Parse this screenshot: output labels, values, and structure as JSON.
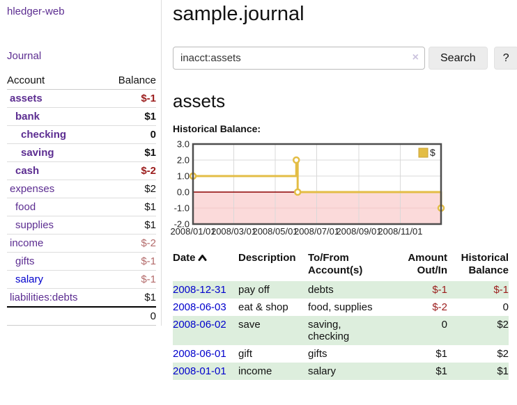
{
  "app": {
    "title": "hledger-web",
    "nav_journal": "Journal"
  },
  "sidebar": {
    "col_account": "Account",
    "col_balance": "Balance",
    "accounts": [
      {
        "name": "assets",
        "indent": 1,
        "bold": true,
        "link": "purple",
        "balance": "$-1",
        "balance_style": "neg-strong"
      },
      {
        "name": "bank",
        "indent": 2,
        "bold": true,
        "link": "purple",
        "balance": "$1",
        "balance_style": "normal"
      },
      {
        "name": "checking",
        "indent": 3,
        "bold": true,
        "link": "purple",
        "balance": "0",
        "balance_style": "normal"
      },
      {
        "name": "saving",
        "indent": 3,
        "bold": true,
        "link": "purple",
        "balance": "$1",
        "balance_style": "normal"
      },
      {
        "name": "cash",
        "indent": 2,
        "bold": true,
        "link": "purple",
        "balance": "$-2",
        "balance_style": "neg-strong"
      },
      {
        "name": "expenses",
        "indent": 1,
        "bold": false,
        "link": "purple",
        "balance": "$2",
        "balance_style": "normal"
      },
      {
        "name": "food",
        "indent": 2,
        "bold": false,
        "link": "purple",
        "balance": "$1",
        "balance_style": "normal"
      },
      {
        "name": "supplies",
        "indent": 2,
        "bold": false,
        "link": "purple",
        "balance": "$1",
        "balance_style": "normal"
      },
      {
        "name": "income",
        "indent": 1,
        "bold": false,
        "link": "purple",
        "balance": "$-2",
        "balance_style": "neg-soft"
      },
      {
        "name": "gifts",
        "indent": 2,
        "bold": false,
        "link": "purple",
        "balance": "$-1",
        "balance_style": "neg-soft"
      },
      {
        "name": "salary",
        "indent": 2,
        "bold": false,
        "link": "blue",
        "balance": "$-1",
        "balance_style": "neg-soft"
      },
      {
        "name": "liabilities:debts",
        "indent": 1,
        "bold": false,
        "link": "purple",
        "balance": "$1",
        "balance_style": "normal"
      }
    ],
    "total": "0"
  },
  "main": {
    "title": "sample.journal",
    "search": {
      "value": "inacct:assets",
      "clear_icon": "×",
      "button": "Search",
      "help": "?"
    },
    "heading": "assets",
    "chart_label": "Historical Balance:"
  },
  "chart_data": {
    "type": "line",
    "title": "Historical Balance",
    "legend": [
      {
        "label": "$",
        "color": "#e3bd45"
      }
    ],
    "legend_position": "top-right",
    "x_range_days": [
      0,
      365
    ],
    "x_ticks": [
      {
        "day": 0,
        "label": "2008/01/01"
      },
      {
        "day": 60,
        "label": "2008/03/01"
      },
      {
        "day": 121,
        "label": "2008/05/01"
      },
      {
        "day": 182,
        "label": "2008/07/01"
      },
      {
        "day": 244,
        "label": "2008/09/01"
      },
      {
        "day": 305,
        "label": "2008/11/01"
      }
    ],
    "ylim": [
      -2,
      3
    ],
    "y_ticks": [
      "-2.0",
      "-1.0",
      "0.0",
      "1.0",
      "2.0",
      "3.0"
    ],
    "series": [
      {
        "name": "$",
        "color": "#e3bd45",
        "step_points": [
          [
            0,
            1
          ],
          [
            152,
            1
          ],
          [
            152,
            2
          ],
          [
            154,
            2
          ],
          [
            154,
            0
          ],
          [
            365,
            0
          ],
          [
            365,
            -1
          ]
        ],
        "markers": [
          [
            0,
            1
          ],
          [
            152,
            2
          ],
          [
            154,
            0
          ],
          [
            365,
            -1
          ]
        ],
        "data_by_date": [
          {
            "date": "2008-01-01",
            "balance": 1
          },
          {
            "date": "2008-06-01",
            "balance": 2
          },
          {
            "date": "2008-06-02",
            "balance": 2
          },
          {
            "date": "2008-06-03",
            "balance": 0
          },
          {
            "date": "2008-12-31",
            "balance": -1
          }
        ]
      }
    ],
    "grid": true,
    "negative_region_color": "#fbdada",
    "zero_line_color": "#8b0000",
    "grid_color": "#d9d9d9",
    "border_color": "#4d4d4d"
  },
  "transactions": {
    "headers": {
      "date": "Date",
      "description": "Description",
      "account": "To/From Account(s)",
      "amount": "Amount Out/In",
      "balance": "Historical Balance"
    },
    "rows": [
      {
        "date": "2008-12-31",
        "description": "pay off",
        "account": "debts",
        "amount": "$-1",
        "amount_negative": true,
        "balance": "$-1",
        "balance_negative": true
      },
      {
        "date": "2008-06-03",
        "description": "eat & shop",
        "account": "food, supplies",
        "amount": "$-2",
        "amount_negative": true,
        "balance": "0",
        "balance_negative": false
      },
      {
        "date": "2008-06-02",
        "description": "save",
        "account": "saving,\nchecking",
        "amount": "0",
        "amount_negative": false,
        "balance": "$2",
        "balance_negative": false
      },
      {
        "date": "2008-06-01",
        "description": "gift",
        "account": "gifts",
        "amount": "$1",
        "amount_negative": false,
        "balance": "$2",
        "balance_negative": false
      },
      {
        "date": "2008-01-01",
        "description": "income",
        "account": "salary",
        "amount": "$1",
        "amount_negative": false,
        "balance": "$1",
        "balance_negative": false
      }
    ]
  }
}
